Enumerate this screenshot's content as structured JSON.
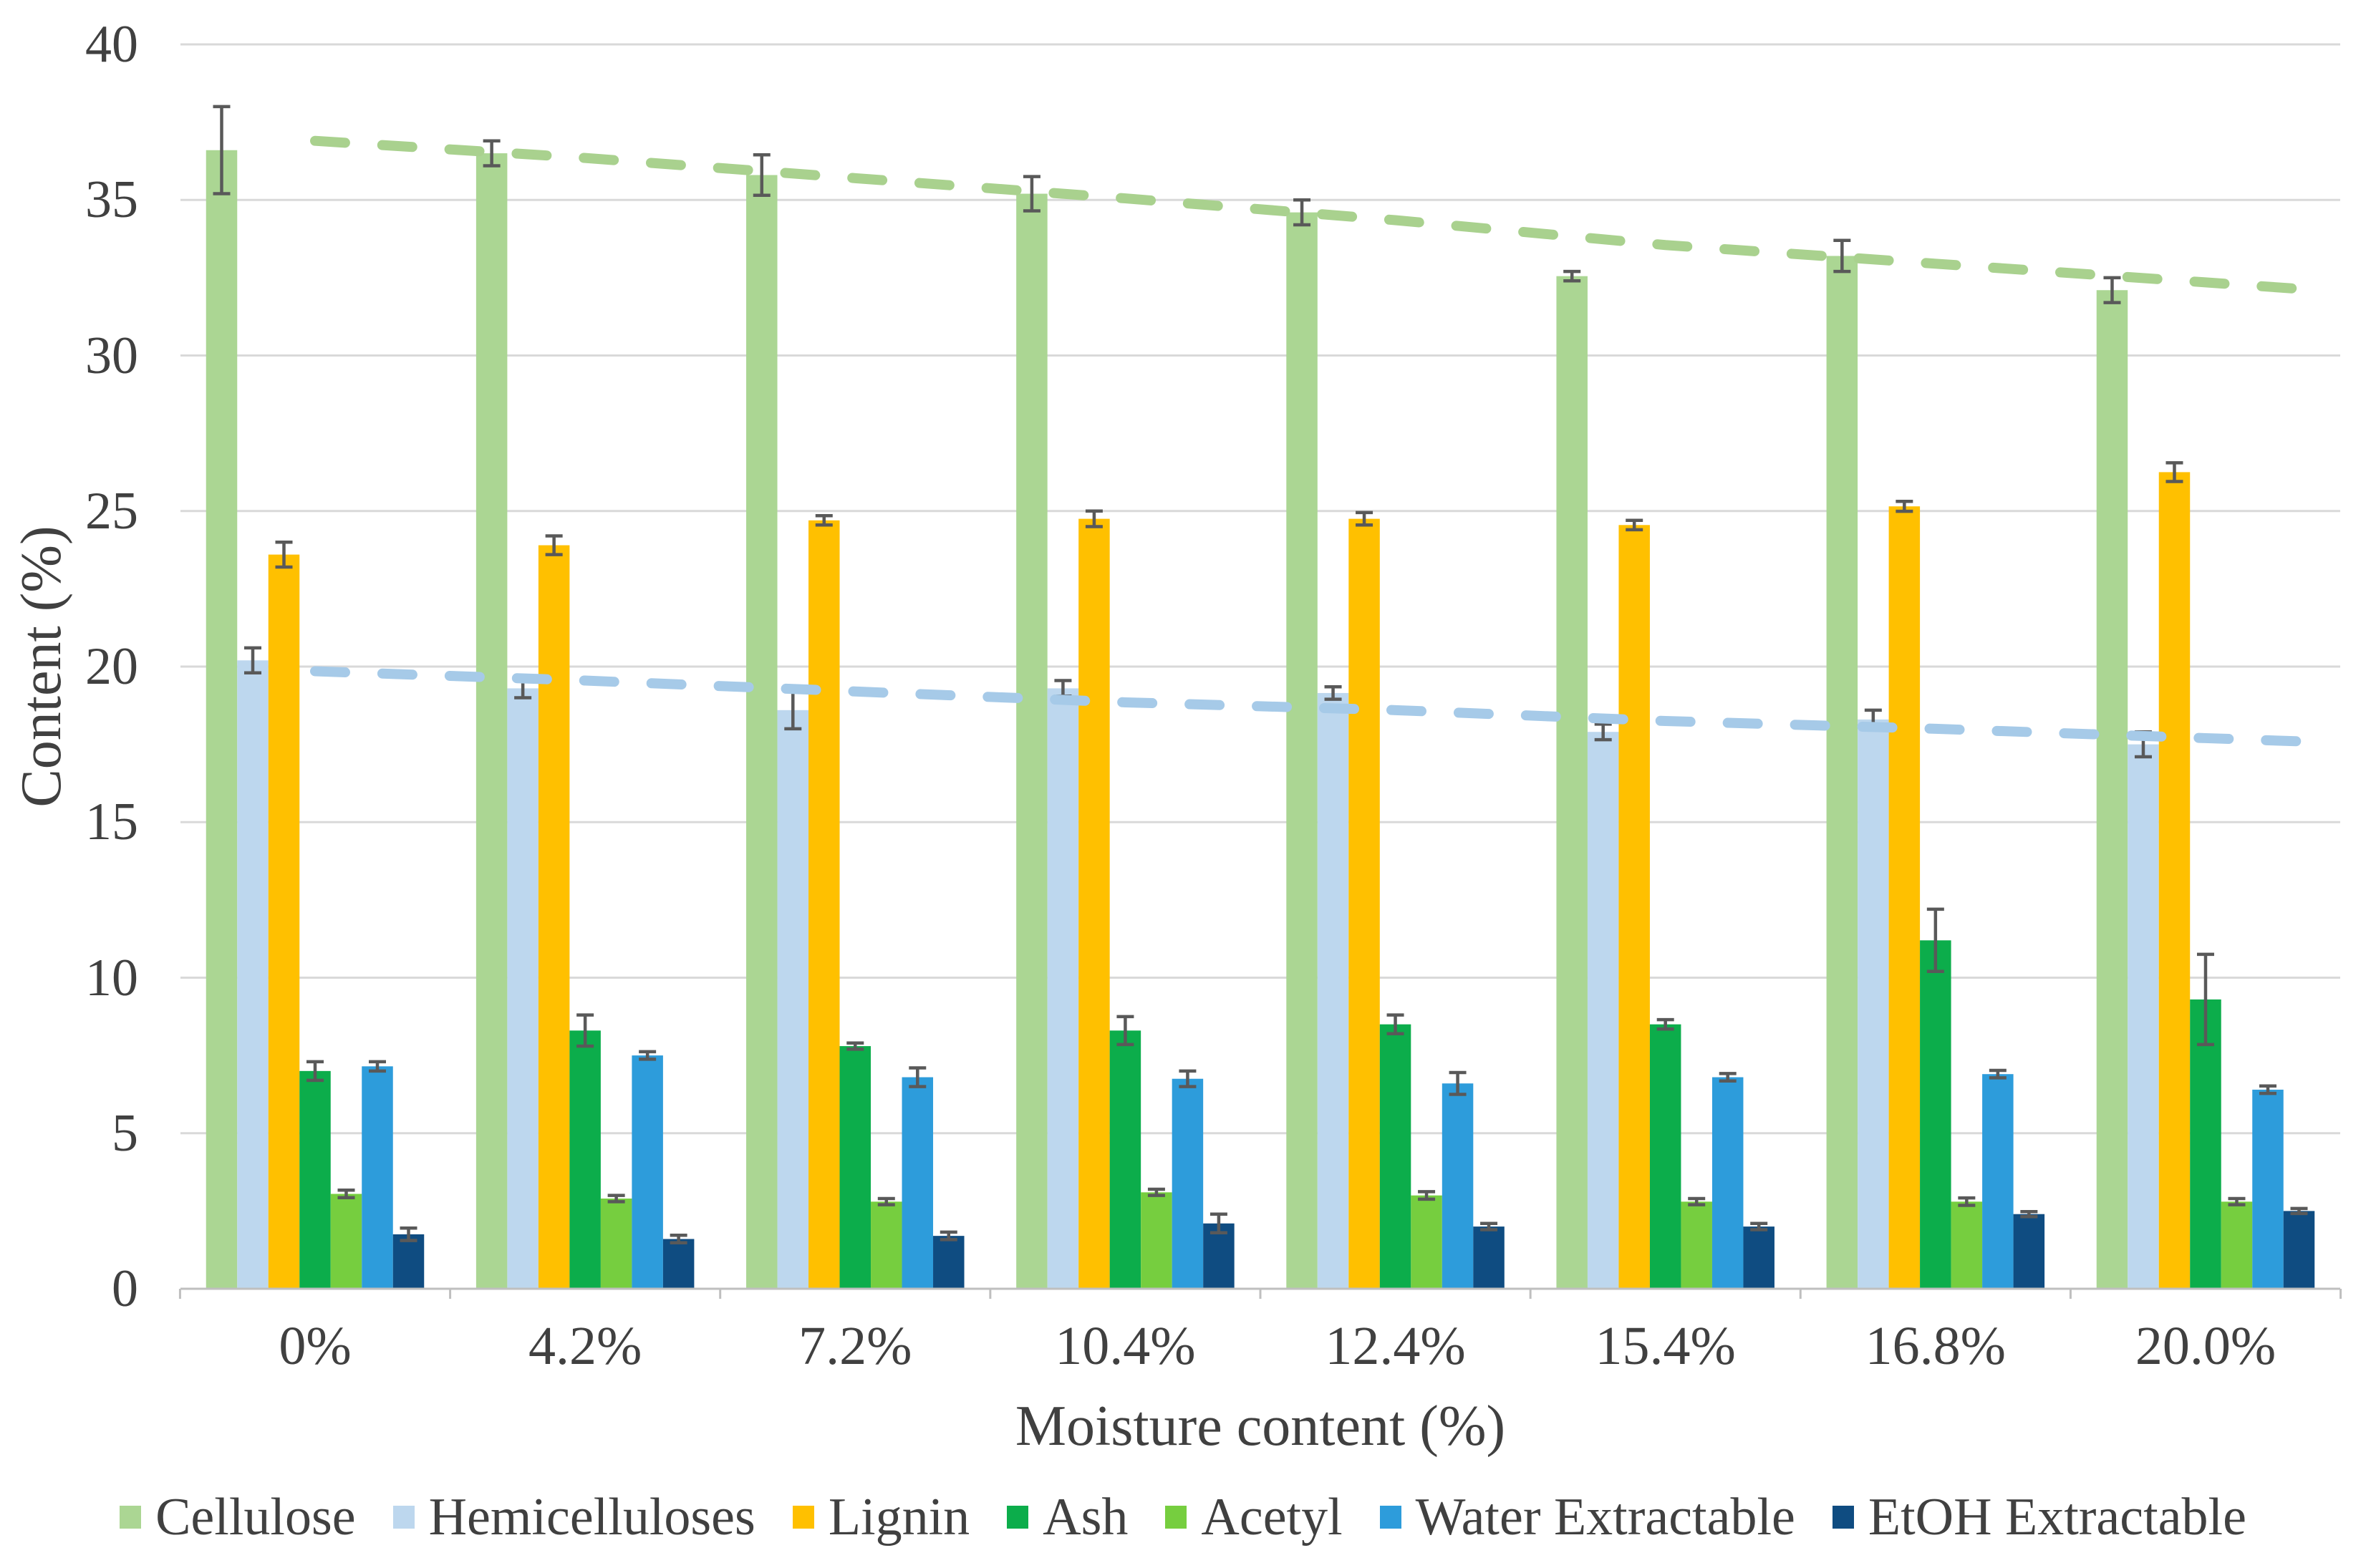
{
  "chart_data": {
    "type": "bar",
    "title": "",
    "xlabel": "Moisture content (%)",
    "ylabel": "Content (%)",
    "ylim": [
      0,
      40
    ],
    "yticks": [
      "0",
      "5",
      "10",
      "15",
      "20",
      "25",
      "30",
      "35",
      "40"
    ],
    "ytick_values": [
      0,
      5,
      10,
      15,
      20,
      25,
      30,
      35,
      40
    ],
    "categories": [
      "0%",
      "4.2%",
      "7.2%",
      "10.4%",
      "12.4%",
      "15.4%",
      "16.8%",
      "20.0%"
    ],
    "grid": true,
    "legend_position": "bottom",
    "series": [
      {
        "name": "Cellulose",
        "color": "#ABD693",
        "values": [
          36.6,
          36.5,
          35.8,
          35.2,
          34.6,
          32.55,
          33.2,
          32.1
        ],
        "errors": [
          1.4,
          0.4,
          0.65,
          0.55,
          0.4,
          0.15,
          0.5,
          0.4
        ]
      },
      {
        "name": "Hemicelluloses",
        "color": "#BDD7EE",
        "values": [
          20.2,
          19.3,
          18.6,
          19.3,
          19.15,
          17.9,
          18.3,
          17.5
        ],
        "errors": [
          0.4,
          0.3,
          0.6,
          0.25,
          0.2,
          0.25,
          0.3,
          0.4
        ]
      },
      {
        "name": "Lignin",
        "color": "#FFC000",
        "values": [
          23.6,
          23.9,
          24.7,
          24.75,
          24.75,
          24.55,
          25.15,
          26.25
        ],
        "errors": [
          0.4,
          0.3,
          0.15,
          0.25,
          0.2,
          0.15,
          0.16,
          0.3
        ]
      },
      {
        "name": "Ash",
        "color": "#0CAD4B",
        "values": [
          7.0,
          8.3,
          7.8,
          8.3,
          8.5,
          8.5,
          11.2,
          9.3
        ],
        "errors": [
          0.3,
          0.5,
          0.1,
          0.45,
          0.3,
          0.15,
          1.0,
          1.45
        ]
      },
      {
        "name": "Acetyl",
        "color": "#76CE3F",
        "values": [
          3.05,
          2.9,
          2.8,
          3.1,
          3.0,
          2.8,
          2.8,
          2.8
        ],
        "errors": [
          0.12,
          0.1,
          0.1,
          0.1,
          0.12,
          0.1,
          0.12,
          0.1
        ]
      },
      {
        "name": "Water Extractable",
        "color": "#2D9CDB",
        "values": [
          7.15,
          7.5,
          6.8,
          6.75,
          6.6,
          6.8,
          6.9,
          6.4
        ],
        "errors": [
          0.15,
          0.12,
          0.3,
          0.25,
          0.35,
          0.12,
          0.12,
          0.12
        ]
      },
      {
        "name": "EtOH Extractable",
        "color": "#0F4C81",
        "values": [
          1.75,
          1.6,
          1.7,
          2.1,
          2.0,
          2.0,
          2.4,
          2.5
        ],
        "errors": [
          0.2,
          0.12,
          0.12,
          0.3,
          0.1,
          0.1,
          0.08,
          0.08
        ]
      }
    ],
    "trendlines": [
      {
        "series": "Cellulose",
        "style": "dashed",
        "color": "#A9D18E",
        "values": [
          36.9,
          36.35,
          35.7,
          35.05,
          34.35,
          33.55,
          32.95,
          32.35
        ]
      },
      {
        "series": "Hemicelluloses",
        "style": "dashed",
        "color": "#A6CAE8",
        "values": [
          19.85,
          19.55,
          19.2,
          18.85,
          18.6,
          18.25,
          18.0,
          17.7
        ]
      }
    ],
    "colors": {
      "gridline": "#D9D9D9",
      "axis_line": "#BFBFBF",
      "error_bar": "#595959",
      "text": "#404040"
    }
  }
}
